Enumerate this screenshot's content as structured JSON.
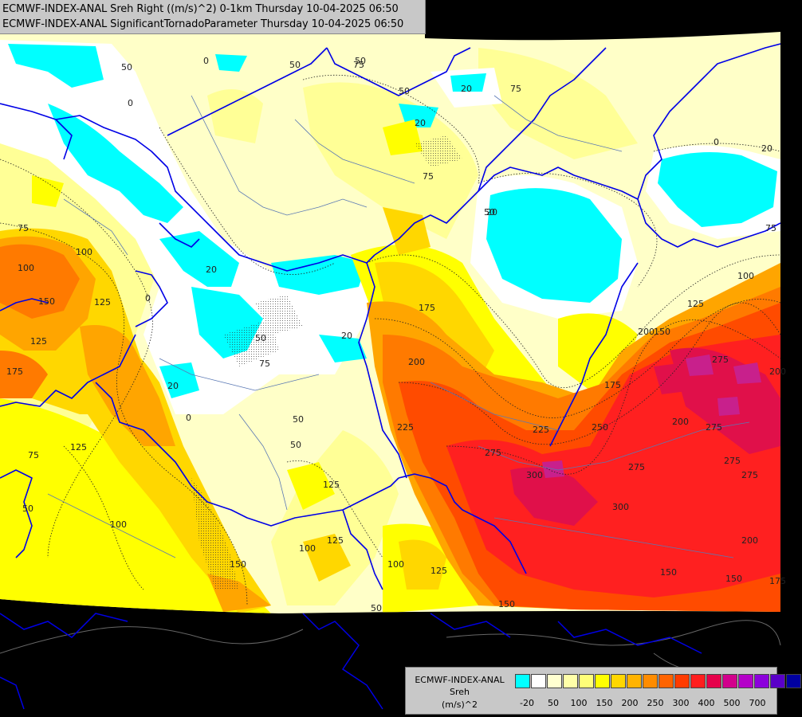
{
  "header": {
    "line1": "ECMWF-INDEX-ANAL Sreh Right ((m/s)^2) 0-1km Thursday 10-04-2025 06:50",
    "line2": "ECMWF-INDEX-ANAL SignificantTornadoParameter Thursday 10-04-2025 06:50"
  },
  "legend": {
    "title_model": "ECMWF-INDEX-ANAL",
    "title_param": "Sreh",
    "title_unit": "(m/s)^2",
    "swatch_colors": [
      "#00ffff",
      "#ffffff",
      "#ffffd0",
      "#ffffa8",
      "#ffff78",
      "#ffff00",
      "#ffd700",
      "#ffb300",
      "#ff8c00",
      "#ff6400",
      "#ff3c00",
      "#ff1e1e",
      "#e6004b",
      "#d2008c",
      "#b400c8",
      "#8c00dc",
      "#5a00c8",
      "#0000a0"
    ],
    "ticks": [
      "-20",
      "50",
      "100",
      "150",
      "200",
      "250",
      "300",
      "400",
      "500",
      "700"
    ]
  },
  "map_data": {
    "fill_colors": {
      "cyan": "#00ffff",
      "white": "#ffffff",
      "pale": "#ffffc8",
      "light_yellow": "#ffff96",
      "yellow": "#ffff00",
      "gold": "#ffd700",
      "orange": "#ffa500",
      "dark_orange": "#ff7a00",
      "red_orange": "#ff4b00",
      "red": "#ff2020",
      "crimson": "#e0104a",
      "magenta": "#c8208c"
    },
    "border_color": "#0000e6",
    "contour_labels": [
      {
        "text": "75"
      },
      {
        "text": "100"
      },
      {
        "text": "150"
      },
      {
        "text": "125"
      },
      {
        "text": "125"
      },
      {
        "text": "175"
      },
      {
        "text": "0"
      },
      {
        "text": "75"
      },
      {
        "text": "125"
      },
      {
        "text": "50"
      },
      {
        "text": "100"
      },
      {
        "text": "150"
      },
      {
        "text": "0"
      },
      {
        "text": "50"
      },
      {
        "text": "0"
      },
      {
        "text": "20"
      },
      {
        "text": "50"
      },
      {
        "text": "75"
      },
      {
        "text": "50"
      },
      {
        "text": "75"
      },
      {
        "text": "125"
      },
      {
        "text": "125"
      },
      {
        "text": "100"
      },
      {
        "text": "100"
      },
      {
        "text": "125"
      },
      {
        "text": "50"
      },
      {
        "text": "0"
      },
      {
        "text": "50"
      },
      {
        "text": "50"
      },
      {
        "text": "50"
      },
      {
        "text": "20"
      },
      {
        "text": "100"
      },
      {
        "text": "75"
      },
      {
        "text": "20"
      },
      {
        "text": "50"
      },
      {
        "text": "20"
      },
      {
        "text": "50"
      },
      {
        "text": "0"
      },
      {
        "text": "20"
      },
      {
        "text": "75"
      },
      {
        "text": "75"
      },
      {
        "text": "175"
      },
      {
        "text": "200"
      },
      {
        "text": "225"
      },
      {
        "text": "20"
      },
      {
        "text": "20"
      },
      {
        "text": "225"
      },
      {
        "text": "275"
      },
      {
        "text": "300"
      },
      {
        "text": "200"
      },
      {
        "text": "250"
      },
      {
        "text": "175"
      },
      {
        "text": "150"
      },
      {
        "text": "125"
      },
      {
        "text": "100"
      },
      {
        "text": "200"
      },
      {
        "text": "275"
      },
      {
        "text": "275"
      },
      {
        "text": "200"
      },
      {
        "text": "275"
      },
      {
        "text": "275"
      },
      {
        "text": "300"
      },
      {
        "text": "275"
      },
      {
        "text": "200"
      },
      {
        "text": "150"
      },
      {
        "text": "150"
      },
      {
        "text": "175"
      },
      {
        "text": "150"
      }
    ]
  }
}
